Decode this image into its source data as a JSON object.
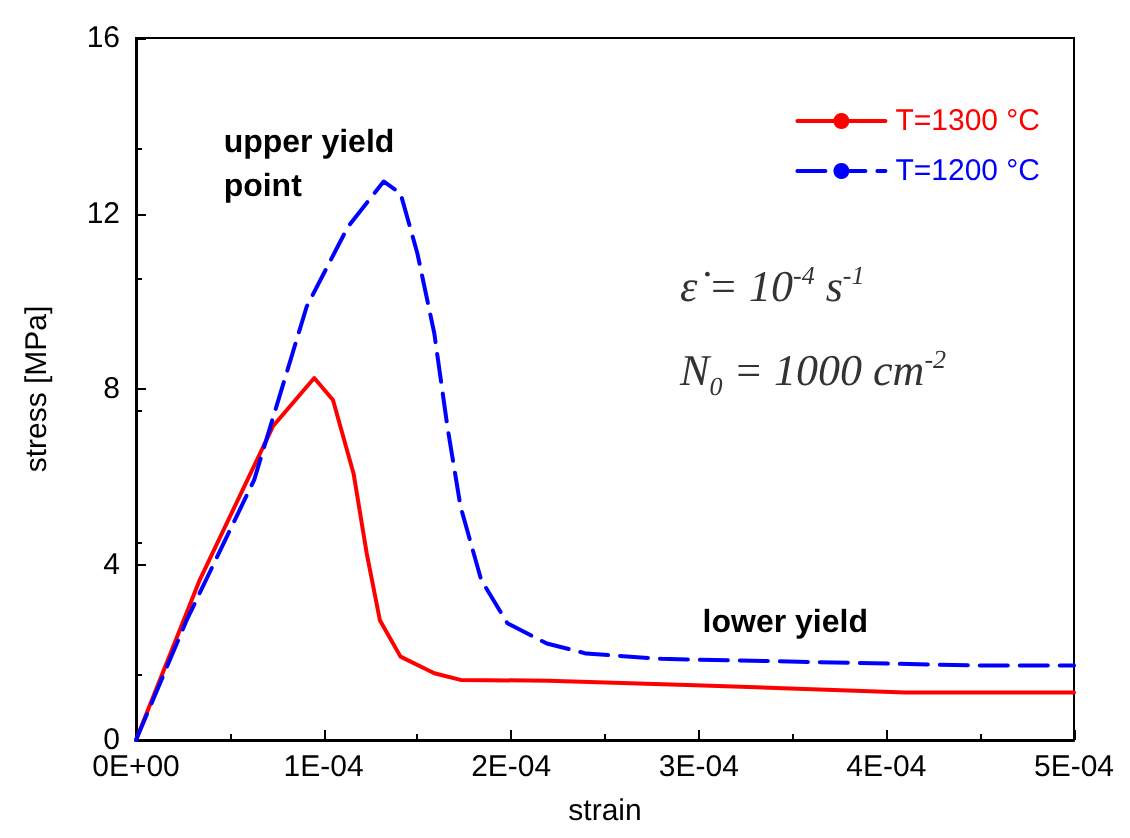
{
  "chart_data": {
    "type": "line",
    "xlabel": "strain",
    "ylabel": "stress [MPa]",
    "xlim": [
      0,
      0.0005
    ],
    "ylim": [
      0,
      16
    ],
    "xticks": [
      {
        "value": 0,
        "label": "0E+00"
      },
      {
        "value": 0.0001,
        "label": "1E-04"
      },
      {
        "value": 0.0002,
        "label": "2E-04"
      },
      {
        "value": 0.0003,
        "label": "3E-04"
      },
      {
        "value": 0.0004,
        "label": "4E-04"
      },
      {
        "value": 0.0005,
        "label": "5E-04"
      }
    ],
    "yticks": [
      0,
      4,
      8,
      12,
      16
    ],
    "grid": false,
    "legend": "top right",
    "marker": "none",
    "annotations": [
      {
        "text": "upper yield point",
        "x": 0.000132,
        "y": 12.73
      },
      {
        "text": "lower yield",
        "x": 0.00035,
        "y": 1.8
      },
      "ε̇ = 10$^{-4}$ s$^{-1}$",
      "N$_{0}$ = 1000 cm$^{-2}$"
    ],
    "series": [
      {
        "name": "T=1300 °C",
        "color": "#ff0000",
        "line_style": "solid",
        "x": [
          0,
          3.4e-05,
          7.3e-05,
          9.5e-05,
          0.000105,
          0.000116,
          0.000123,
          0.00013,
          0.000141,
          0.000159,
          0.000173,
          0.00022,
          0.000298,
          0.00041,
          0.0005
        ],
        "values": [
          0,
          3.65,
          7.15,
          8.25,
          7.75,
          6.07,
          4.25,
          2.73,
          1.9,
          1.52,
          1.37,
          1.35,
          1.25,
          1.08,
          1.08
        ]
      },
      {
        "name": "T=1200 °C",
        "color": "#0000ff",
        "line_style": "dashed",
        "x": [
          0,
          2.7e-05,
          6.3e-05,
          9.1e-05,
          0.000113,
          0.000132,
          0.000141,
          0.00015,
          0.000159,
          0.000166,
          0.000173,
          0.000184,
          0.000198,
          0.000219,
          0.00024,
          0.00028,
          0.000447,
          0.0005
        ],
        "values": [
          0,
          2.73,
          5.93,
          9.88,
          11.7,
          12.73,
          12.46,
          11.09,
          9.27,
          7.14,
          5.32,
          3.65,
          2.66,
          2.2,
          1.97,
          1.85,
          1.7,
          1.7
        ]
      }
    ]
  }
}
